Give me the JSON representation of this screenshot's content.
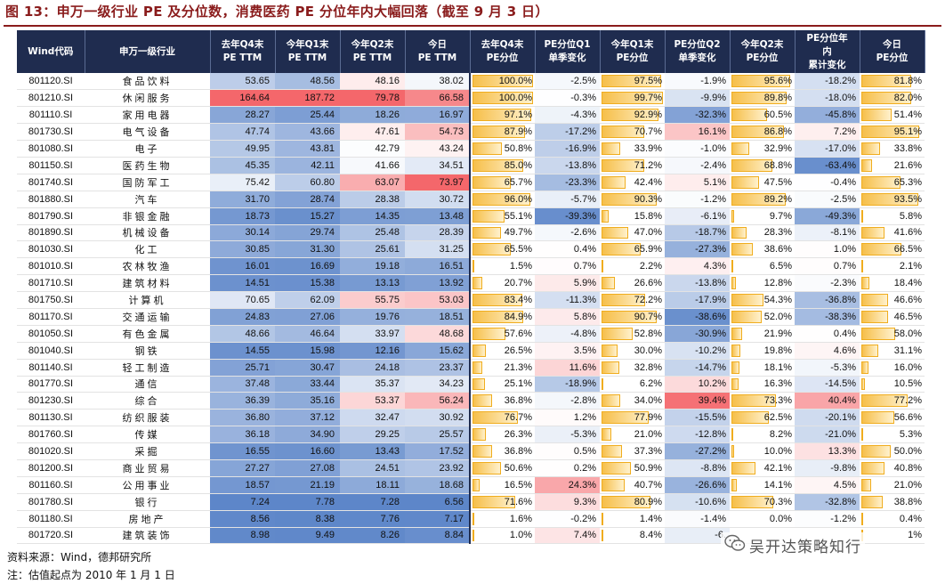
{
  "title": "图 13：申万一级行业 PE 及分位数，消费医药 PE 分位年内大幅回落（截至 9 月 3 日）",
  "headers": [
    [
      "Wind代码"
    ],
    [
      "申万一级行业"
    ],
    [
      "去年Q4末",
      "PE TTM"
    ],
    [
      "今年Q1末",
      "PE TTM"
    ],
    [
      "今年Q2末",
      "PE TTM"
    ],
    [
      "今日",
      "PE TTM"
    ],
    [
      "去年Q4末",
      "PE分位"
    ],
    [
      "PE分位Q1",
      "单季变化"
    ],
    [
      "今年Q1末",
      "PE分位"
    ],
    [
      "PE分位Q2",
      "单季变化"
    ],
    [
      "今年Q2末",
      "PE分位"
    ],
    [
      "PE分位年",
      "内",
      "累计变化"
    ],
    [
      "今日",
      "PE分位"
    ]
  ],
  "rows": [
    {
      "code": "801120.SI",
      "name": "食品饮料",
      "pe": [
        "53.65",
        "48.56",
        "48.16",
        "38.02"
      ],
      "q4p": "100.0%",
      "q1c": "-2.5%",
      "q1p": "97.5%",
      "q2c": "-1.9%",
      "q2p": "95.6%",
      "ytd": "-18.2%",
      "now": "81.8%"
    },
    {
      "code": "801210.SI",
      "name": "休闲服务",
      "pe": [
        "164.64",
        "187.72",
        "79.78",
        "66.58"
      ],
      "q4p": "100.0%",
      "q1c": "-0.3%",
      "q1p": "99.7%",
      "q2c": "-9.9%",
      "q2p": "89.8%",
      "ytd": "-18.0%",
      "now": "82.0%"
    },
    {
      "code": "801110.SI",
      "name": "家用电器",
      "pe": [
        "28.27",
        "25.44",
        "18.26",
        "16.97"
      ],
      "q4p": "97.1%",
      "q1c": "-4.3%",
      "q1p": "92.9%",
      "q2c": "-32.3%",
      "q2p": "60.5%",
      "ytd": "-45.8%",
      "now": "51.4%"
    },
    {
      "code": "801730.SI",
      "name": "电气设备",
      "pe": [
        "47.74",
        "43.66",
        "47.61",
        "54.73"
      ],
      "q4p": "87.9%",
      "q1c": "-17.2%",
      "q1p": "70.7%",
      "q2c": "16.1%",
      "q2p": "86.8%",
      "ytd": "7.2%",
      "now": "95.1%"
    },
    {
      "code": "801080.SI",
      "name": "电子",
      "pe": [
        "49.95",
        "43.81",
        "42.79",
        "43.24"
      ],
      "q4p": "50.8%",
      "q1c": "-16.9%",
      "q1p": "33.9%",
      "q2c": "-1.0%",
      "q2p": "32.9%",
      "ytd": "-17.0%",
      "now": "33.8%"
    },
    {
      "code": "801150.SI",
      "name": "医药生物",
      "pe": [
        "45.35",
        "42.11",
        "41.66",
        "34.51"
      ],
      "q4p": "85.0%",
      "q1c": "-13.8%",
      "q1p": "71.2%",
      "q2c": "-2.4%",
      "q2p": "68.8%",
      "ytd": "-63.4%",
      "now": "21.6%"
    },
    {
      "code": "801740.SI",
      "name": "国防军工",
      "pe": [
        "75.42",
        "60.80",
        "63.07",
        "73.97"
      ],
      "q4p": "65.7%",
      "q1c": "-23.3%",
      "q1p": "42.4%",
      "q2c": "5.1%",
      "q2p": "47.5%",
      "ytd": "-0.4%",
      "now": "65.3%"
    },
    {
      "code": "801880.SI",
      "name": "汽车",
      "pe": [
        "31.70",
        "28.74",
        "28.38",
        "30.72"
      ],
      "q4p": "96.0%",
      "q1c": "-5.7%",
      "q1p": "90.3%",
      "q2c": "-1.2%",
      "q2p": "89.2%",
      "ytd": "-2.5%",
      "now": "93.5%"
    },
    {
      "code": "801790.SI",
      "name": "非银金融",
      "pe": [
        "18.73",
        "15.27",
        "14.35",
        "13.48"
      ],
      "q4p": "55.1%",
      "q1c": "-39.3%",
      "q1p": "15.8%",
      "q2c": "-6.1%",
      "q2p": "9.7%",
      "ytd": "-49.3%",
      "now": "5.8%"
    },
    {
      "code": "801890.SI",
      "name": "机械设备",
      "pe": [
        "30.14",
        "29.74",
        "25.48",
        "28.39"
      ],
      "q4p": "49.7%",
      "q1c": "-2.6%",
      "q1p": "47.0%",
      "q2c": "-18.7%",
      "q2p": "28.3%",
      "ytd": "-8.1%",
      "now": "41.6%"
    },
    {
      "code": "801030.SI",
      "name": "化工",
      "pe": [
        "30.85",
        "31.30",
        "25.61",
        "31.25"
      ],
      "q4p": "65.5%",
      "q1c": "0.4%",
      "q1p": "65.9%",
      "q2c": "-27.3%",
      "q2p": "38.6%",
      "ytd": "1.0%",
      "now": "66.5%"
    },
    {
      "code": "801010.SI",
      "name": "农林牧渔",
      "pe": [
        "16.01",
        "16.69",
        "19.18",
        "16.51"
      ],
      "q4p": "1.5%",
      "q1c": "0.7%",
      "q1p": "2.2%",
      "q2c": "4.3%",
      "q2p": "6.5%",
      "ytd": "0.7%",
      "now": "2.1%"
    },
    {
      "code": "801710.SI",
      "name": "建筑材料",
      "pe": [
        "14.51",
        "15.38",
        "13.13",
        "13.92"
      ],
      "q4p": "20.7%",
      "q1c": "5.9%",
      "q1p": "26.6%",
      "q2c": "-13.8%",
      "q2p": "12.8%",
      "ytd": "-2.3%",
      "now": "18.4%"
    },
    {
      "code": "801750.SI",
      "name": "计算机",
      "pe": [
        "70.65",
        "62.09",
        "55.75",
        "53.03"
      ],
      "q4p": "83.4%",
      "q1c": "-11.3%",
      "q1p": "72.2%",
      "q2c": "-17.9%",
      "q2p": "54.3%",
      "ytd": "-36.8%",
      "now": "46.6%"
    },
    {
      "code": "801170.SI",
      "name": "交通运输",
      "pe": [
        "24.83",
        "27.06",
        "19.76",
        "18.51"
      ],
      "q4p": "84.9%",
      "q1c": "5.8%",
      "q1p": "90.7%",
      "q2c": "-38.6%",
      "q2p": "52.0%",
      "ytd": "-38.3%",
      "now": "46.5%"
    },
    {
      "code": "801050.SI",
      "name": "有色金属",
      "pe": [
        "48.66",
        "46.64",
        "33.97",
        "48.68"
      ],
      "q4p": "57.6%",
      "q1c": "-4.8%",
      "q1p": "52.8%",
      "q2c": "-30.9%",
      "q2p": "21.9%",
      "ytd": "0.4%",
      "now": "58.0%"
    },
    {
      "code": "801040.SI",
      "name": "钢铁",
      "pe": [
        "14.55",
        "15.98",
        "12.16",
        "15.62"
      ],
      "q4p": "26.5%",
      "q1c": "3.5%",
      "q1p": "30.0%",
      "q2c": "-10.2%",
      "q2p": "19.8%",
      "ytd": "4.6%",
      "now": "31.1%"
    },
    {
      "code": "801140.SI",
      "name": "轻工制造",
      "pe": [
        "25.71",
        "30.47",
        "24.18",
        "23.37"
      ],
      "q4p": "21.3%",
      "q1c": "11.6%",
      "q1p": "32.8%",
      "q2c": "-14.7%",
      "q2p": "18.1%",
      "ytd": "-5.3%",
      "now": "16.0%"
    },
    {
      "code": "801770.SI",
      "name": "通信",
      "pe": [
        "37.48",
        "33.44",
        "35.37",
        "34.23"
      ],
      "q4p": "25.1%",
      "q1c": "-18.9%",
      "q1p": "6.2%",
      "q2c": "10.2%",
      "q2p": "16.3%",
      "ytd": "-14.5%",
      "now": "10.5%"
    },
    {
      "code": "801230.SI",
      "name": "综合",
      "pe": [
        "36.39",
        "35.16",
        "53.37",
        "56.24"
      ],
      "q4p": "36.8%",
      "q1c": "-2.8%",
      "q1p": "34.0%",
      "q2c": "39.4%",
      "q2p": "73.3%",
      "ytd": "40.4%",
      "now": "77.2%"
    },
    {
      "code": "801130.SI",
      "name": "纺织服装",
      "pe": [
        "36.80",
        "37.12",
        "32.47",
        "30.92"
      ],
      "q4p": "76.7%",
      "q1c": "1.2%",
      "q1p": "77.9%",
      "q2c": "-15.5%",
      "q2p": "62.5%",
      "ytd": "-20.1%",
      "now": "56.6%"
    },
    {
      "code": "801760.SI",
      "name": "传媒",
      "pe": [
        "36.18",
        "34.90",
        "29.25",
        "25.57"
      ],
      "q4p": "26.3%",
      "q1c": "-5.3%",
      "q1p": "21.0%",
      "q2c": "-12.8%",
      "q2p": "8.2%",
      "ytd": "-21.0%",
      "now": "5.3%"
    },
    {
      "code": "801020.SI",
      "name": "采掘",
      "pe": [
        "16.55",
        "16.60",
        "13.43",
        "17.52"
      ],
      "q4p": "36.8%",
      "q1c": "0.5%",
      "q1p": "37.3%",
      "q2c": "-27.2%",
      "q2p": "10.0%",
      "ytd": "13.3%",
      "now": "50.0%"
    },
    {
      "code": "801200.SI",
      "name": "商业贸易",
      "pe": [
        "27.27",
        "27.08",
        "24.51",
        "23.92"
      ],
      "q4p": "50.6%",
      "q1c": "0.2%",
      "q1p": "50.9%",
      "q2c": "-8.8%",
      "q2p": "42.1%",
      "ytd": "-9.8%",
      "now": "40.8%"
    },
    {
      "code": "801160.SI",
      "name": "公用事业",
      "pe": [
        "18.57",
        "21.19",
        "18.11",
        "18.68"
      ],
      "q4p": "16.5%",
      "q1c": "24.3%",
      "q1p": "40.7%",
      "q2c": "-26.6%",
      "q2p": "14.1%",
      "ytd": "4.5%",
      "now": "21.0%"
    },
    {
      "code": "801780.SI",
      "name": "银行",
      "pe": [
        "7.24",
        "7.78",
        "7.28",
        "6.56"
      ],
      "q4p": "71.6%",
      "q1c": "9.3%",
      "q1p": "80.9%",
      "q2c": "-10.6%",
      "q2p": "70.3%",
      "ytd": "-32.8%",
      "now": "38.8%"
    },
    {
      "code": "801180.SI",
      "name": "房地产",
      "pe": [
        "8.56",
        "8.38",
        "7.76",
        "7.17"
      ],
      "q4p": "1.6%",
      "q1c": "-0.2%",
      "q1p": "1.4%",
      "q2c": "-1.4%",
      "q2p": "0.0%",
      "ytd": "-1.2%",
      "now": "0.4%"
    },
    {
      "code": "801720.SI",
      "name": "建筑装饰",
      "pe": [
        "8.98",
        "9.49",
        "8.26",
        "8.84"
      ],
      "q4p": "1.0%",
      "q1c": "7.4%",
      "q1p": "8.4%",
      "q2c": "-6.",
      "q2p": "",
      "ytd": "",
      "now": "1%"
    }
  ],
  "footnotes": {
    "source": "资料来源：Wind，德邦研究所",
    "note": "注：估值起点为 2010 年 1 月 1 日"
  },
  "watermark": {
    "text": "吴开达策略知行",
    "icon": "wechat-icon"
  },
  "colors": {
    "header_bg": "#1f2c4f",
    "title": "#8a1c1c",
    "bar": "#f6bf4a",
    "pos": "#f4676b",
    "neg": "#5d86c9"
  }
}
